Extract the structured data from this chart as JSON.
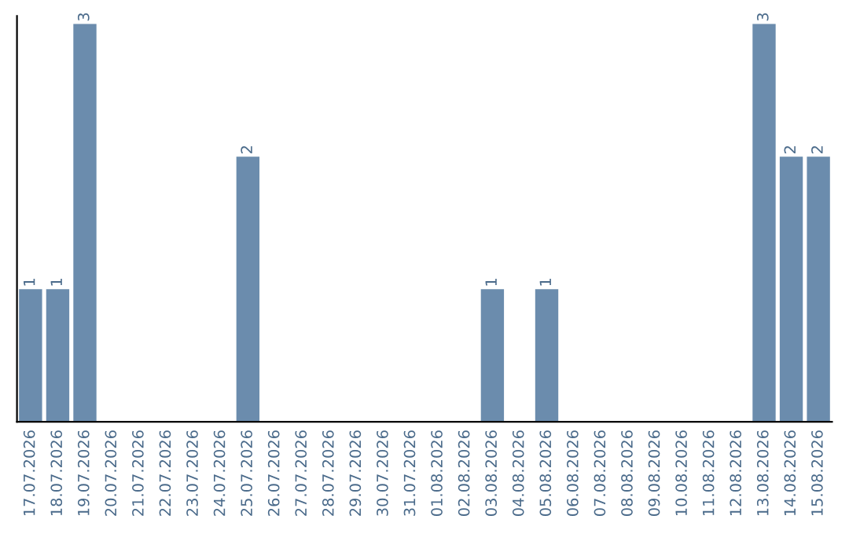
{
  "chart_data": {
    "type": "bar",
    "categories": [
      "17.07.2026",
      "18.07.2026",
      "19.07.2026",
      "20.07.2026",
      "21.07.2026",
      "22.07.2026",
      "23.07.2026",
      "24.07.2026",
      "25.07.2026",
      "26.07.2026",
      "27.07.2026",
      "28.07.2026",
      "29.07.2026",
      "30.07.2026",
      "31.07.2026",
      "01.08.2026",
      "02.08.2026",
      "03.08.2026",
      "04.08.2026",
      "05.08.2026",
      "06.08.2026",
      "07.08.2026",
      "08.08.2026",
      "09.08.2026",
      "10.08.2026",
      "11.08.2026",
      "12.08.2026",
      "13.08.2026",
      "14.08.2026",
      "15.08.2026"
    ],
    "values": [
      1,
      1,
      3,
      0,
      0,
      0,
      0,
      0,
      2,
      0,
      0,
      0,
      0,
      0,
      0,
      0,
      0,
      1,
      0,
      1,
      0,
      0,
      0,
      0,
      0,
      0,
      0,
      3,
      2,
      2
    ],
    "value_labels": [
      "1",
      "1",
      "3",
      null,
      null,
      null,
      null,
      null,
      "2",
      null,
      null,
      null,
      null,
      null,
      null,
      null,
      null,
      "1",
      null,
      "1",
      null,
      null,
      null,
      null,
      null,
      null,
      null,
      "3",
      "2",
      "2"
    ],
    "color": "#6b8cad",
    "tick_labels": "x",
    "grid": false,
    "legend": false
  }
}
